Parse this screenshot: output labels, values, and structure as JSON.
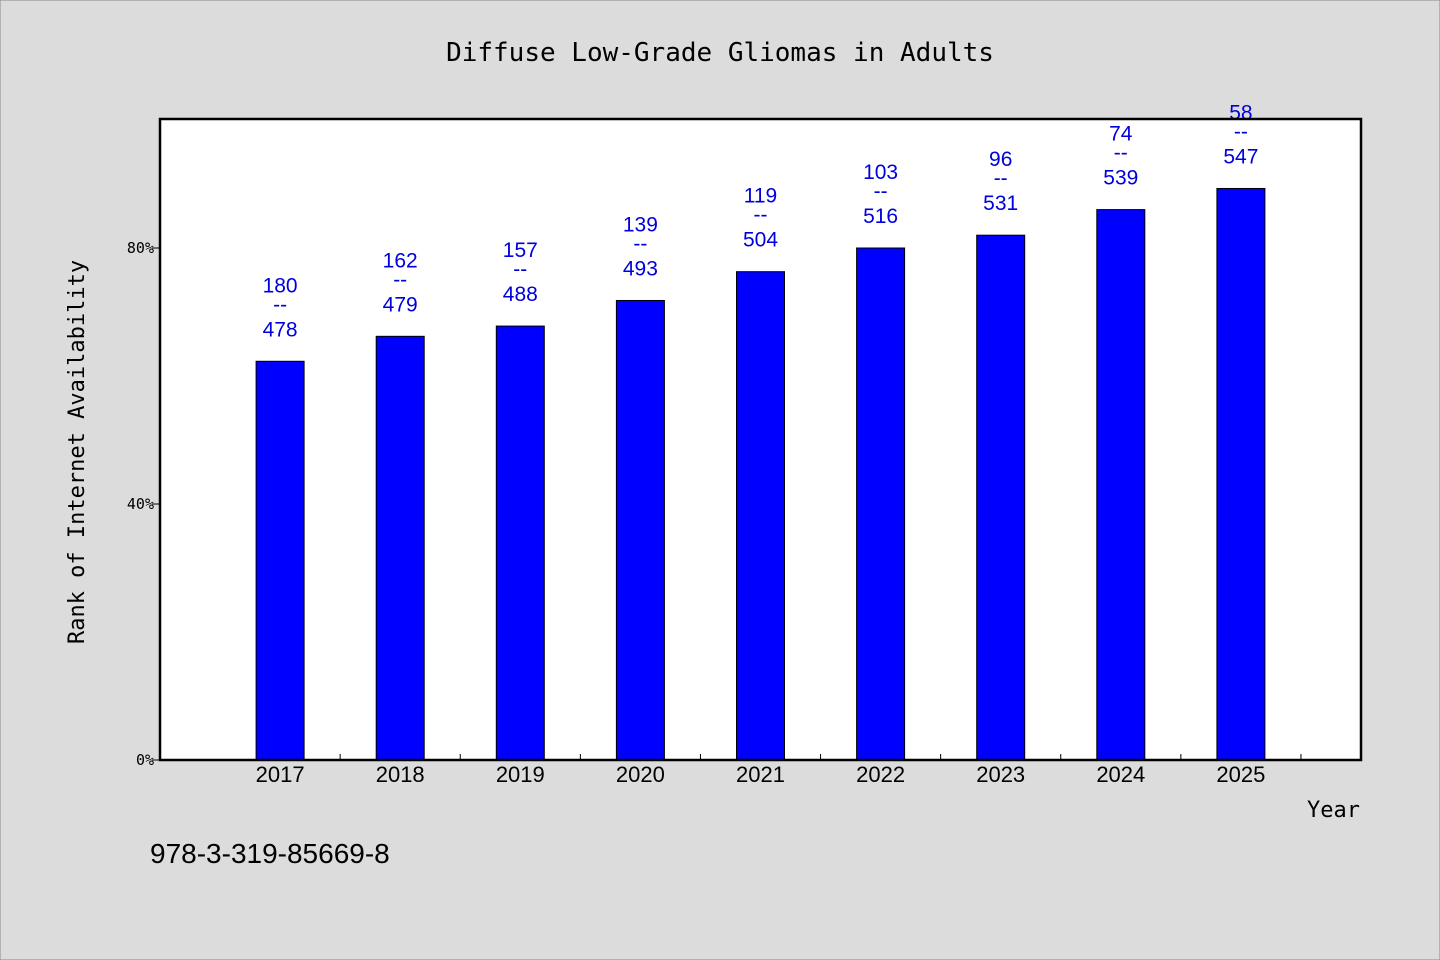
{
  "chart_data": {
    "type": "bar",
    "title": "Diffuse Low-Grade Gliomas in Adults",
    "xlabel": "Year",
    "ylabel": "Rank of Internet Availability",
    "categories": [
      "2017",
      "2018",
      "2019",
      "2020",
      "2021",
      "2022",
      "2023",
      "2024",
      "2025"
    ],
    "values": [
      62.3,
      66.2,
      67.8,
      71.8,
      76.3,
      80.0,
      82.0,
      86.0,
      89.3
    ],
    "value_unit": "%",
    "ylim": [
      0,
      100
    ],
    "yticks": [
      0,
      40,
      80
    ],
    "ytick_labels": [
      "0%",
      "40%",
      "80%"
    ],
    "xlim": [
      2016,
      2026
    ],
    "data_labels": [
      {
        "rank": "180",
        "sep": "--",
        "total": "478"
      },
      {
        "rank": "162",
        "sep": "--",
        "total": "479"
      },
      {
        "rank": "157",
        "sep": "--",
        "total": "488"
      },
      {
        "rank": "139",
        "sep": "--",
        "total": "493"
      },
      {
        "rank": "119",
        "sep": "--",
        "total": "504"
      },
      {
        "rank": "103",
        "sep": "--",
        "total": "516"
      },
      {
        "rank": "96",
        "sep": "--",
        "total": "531"
      },
      {
        "rank": "74",
        "sep": "--",
        "total": "539"
      },
      {
        "rank": "58",
        "sep": "--",
        "total": "547"
      }
    ],
    "bar_color": "#0000ff",
    "label_color": "#0000dd",
    "grid": false
  },
  "footer": {
    "isbn": "978-3-319-85669-8"
  },
  "colors": {
    "background": "#dcdcdc",
    "plot_background": "#ffffff"
  }
}
